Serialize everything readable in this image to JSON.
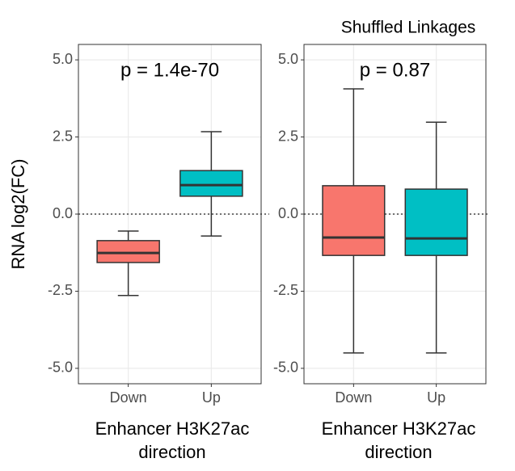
{
  "chart_data": [
    {
      "type": "box",
      "ylabel": "RNA log2(FC)",
      "annotation": "p = 1.4e-70",
      "xlabel": [
        "Enhancer H3K27ac",
        "direction"
      ],
      "categories": [
        "Down",
        "Up"
      ],
      "colors": [
        "#F8766D",
        "#00BFC4"
      ],
      "values": [
        {
          "min": -2.64,
          "q1": -1.57,
          "median": -1.26,
          "q3": -0.86,
          "max": -0.55
        },
        {
          "min": -0.71,
          "q1": 0.58,
          "median": 0.94,
          "q3": 1.41,
          "max": 2.67
        }
      ],
      "ylim": [
        -5.5,
        5.5
      ],
      "yticks": [
        {
          "value": -5,
          "label": "-5.0"
        },
        {
          "value": -2.5,
          "label": "-2.5"
        },
        {
          "value": 0,
          "label": "0.0"
        },
        {
          "value": 2.5,
          "label": "2.5"
        },
        {
          "value": 5,
          "label": "5.0"
        }
      ],
      "hline": 0,
      "grid": true
    },
    {
      "type": "box",
      "title": "Shuffled Linkages",
      "annotation": "p = 0.87",
      "xlabel": [
        "Enhancer H3K27ac",
        "direction"
      ],
      "categories": [
        "Down",
        "Up"
      ],
      "colors": [
        "#F8766D",
        "#00BFC4"
      ],
      "values": [
        {
          "min": -4.5,
          "q1": -1.34,
          "median": -0.76,
          "q3": 0.92,
          "max": 4.06
        },
        {
          "min": -4.5,
          "q1": -1.34,
          "median": -0.79,
          "q3": 0.81,
          "max": 2.98
        }
      ],
      "ylim": [
        -5.5,
        5.5
      ],
      "yticks": [
        {
          "value": -5,
          "label": "-5.0"
        },
        {
          "value": -2.5,
          "label": "-2.5"
        },
        {
          "value": 0,
          "label": "0.0"
        },
        {
          "value": 2.5,
          "label": "2.5"
        },
        {
          "value": 5,
          "label": "5.0"
        }
      ],
      "hline": 0,
      "grid": true
    }
  ]
}
